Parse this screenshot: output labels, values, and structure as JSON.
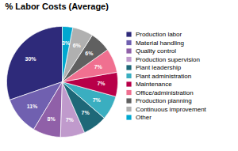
{
  "chart_data": {
    "type": "pie",
    "title": "% Labor Costs (Average)",
    "categories": [
      "Production labor",
      "Material handling",
      "Quality control",
      "Production supervision",
      "Plant leadership",
      "Plant administration",
      "Maintenance",
      "Office/administration",
      "Production planning",
      "Continuous improvement",
      "Other"
    ],
    "values": [
      30,
      11,
      8,
      7,
      7,
      7,
      7,
      7,
      6,
      6,
      3
    ],
    "value_labels": [
      "30%",
      "11%",
      "8%",
      "7%",
      "7%",
      "7%",
      "7%",
      "7%",
      "6%",
      "6%",
      "3%"
    ],
    "colors": [
      "#2e2a7a",
      "#7060b0",
      "#9060a8",
      "#c09acc",
      "#1e6878",
      "#3aaec0",
      "#b80048",
      "#f07090",
      "#606060",
      "#b0b0b0",
      "#00a8d0"
    ],
    "data_labels": true,
    "legend": "right"
  }
}
